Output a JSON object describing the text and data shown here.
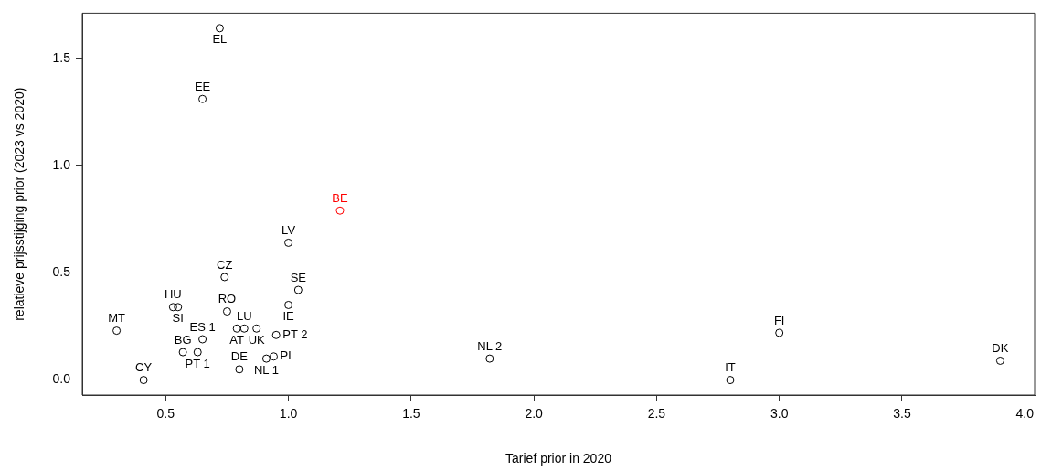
{
  "chart_data": {
    "type": "scatter",
    "xlabel": "Tarief prior in 2020",
    "ylabel": "relatieve prijsstijging prior (2023 vs 2020)",
    "xlim": [
      0.16,
      4.04
    ],
    "ylim": [
      -0.07,
      1.71
    ],
    "xticks": [
      0.5,
      {
        "value": 1,
        "label": "1.0"
      },
      1.5,
      {
        "value": 2,
        "label": "2.0"
      },
      2.5,
      {
        "value": 3,
        "label": "3.0"
      },
      3.5,
      {
        "value": 4,
        "label": "4.0"
      }
    ],
    "yticks": [
      {
        "value": 0,
        "label": "0.0"
      },
      0.5,
      {
        "value": 1,
        "label": "1.0"
      },
      1.5
    ],
    "grid": false,
    "legend": false,
    "marker": "circle",
    "series": [
      {
        "name": "EL",
        "color": "#000000",
        "x": [
          0.72
        ],
        "values": [
          1.64
        ]
      },
      {
        "name": "EE",
        "color": "#000000",
        "x": [
          0.65
        ],
        "values": [
          1.31
        ]
      },
      {
        "name": "BE",
        "color": "#ff0000",
        "x": [
          1.21
        ],
        "values": [
          0.79
        ]
      },
      {
        "name": "LV",
        "color": "#000000",
        "x": [
          1.0
        ],
        "values": [
          0.64
        ]
      },
      {
        "name": "CZ",
        "color": "#000000",
        "x": [
          0.74
        ],
        "values": [
          0.48
        ]
      },
      {
        "name": "SE",
        "color": "#000000",
        "x": [
          1.04
        ],
        "values": [
          0.42
        ]
      },
      {
        "name": "IE",
        "color": "#000000",
        "x": [
          1.0
        ],
        "values": [
          0.35
        ]
      },
      {
        "name": "HU",
        "color": "#000000",
        "x": [
          0.53
        ],
        "values": [
          0.34
        ]
      },
      {
        "name": "SI",
        "color": "#000000",
        "x": [
          0.55
        ],
        "values": [
          0.34
        ]
      },
      {
        "name": "RO",
        "color": "#000000",
        "x": [
          0.75
        ],
        "values": [
          0.32
        ]
      },
      {
        "name": "MT",
        "color": "#000000",
        "x": [
          0.3
        ],
        "values": [
          0.23
        ]
      },
      {
        "name": "AT",
        "color": "#000000",
        "x": [
          0.79
        ],
        "values": [
          0.24
        ]
      },
      {
        "name": "LU",
        "color": "#000000",
        "x": [
          0.82
        ],
        "values": [
          0.24
        ]
      },
      {
        "name": "UK",
        "color": "#000000",
        "x": [
          0.87
        ],
        "values": [
          0.24
        ]
      },
      {
        "name": "PT 2",
        "color": "#000000",
        "x": [
          0.95
        ],
        "values": [
          0.21
        ]
      },
      {
        "name": "ES 1",
        "color": "#000000",
        "x": [
          0.65
        ],
        "values": [
          0.19
        ]
      },
      {
        "name": "BG",
        "color": "#000000",
        "x": [
          0.57
        ],
        "values": [
          0.13
        ]
      },
      {
        "name": "PT 1",
        "color": "#000000",
        "x": [
          0.63
        ],
        "values": [
          0.13
        ]
      },
      {
        "name": "NL 1",
        "color": "#000000",
        "x": [
          0.91
        ],
        "values": [
          0.1
        ]
      },
      {
        "name": "PL",
        "color": "#000000",
        "x": [
          0.94
        ],
        "values": [
          0.11
        ]
      },
      {
        "name": "DE",
        "color": "#000000",
        "x": [
          0.8
        ],
        "values": [
          0.05
        ]
      },
      {
        "name": "CY",
        "color": "#000000",
        "x": [
          0.41
        ],
        "values": [
          0.0
        ]
      },
      {
        "name": "NL 2",
        "color": "#000000",
        "x": [
          1.82
        ],
        "values": [
          0.1
        ]
      },
      {
        "name": "FI",
        "color": "#000000",
        "x": [
          3.0
        ],
        "values": [
          0.22
        ]
      },
      {
        "name": "IT",
        "color": "#000000",
        "x": [
          2.8
        ],
        "values": [
          0.0
        ]
      },
      {
        "name": "DK",
        "color": "#000000",
        "x": [
          3.9
        ],
        "values": [
          0.09
        ]
      }
    ]
  }
}
